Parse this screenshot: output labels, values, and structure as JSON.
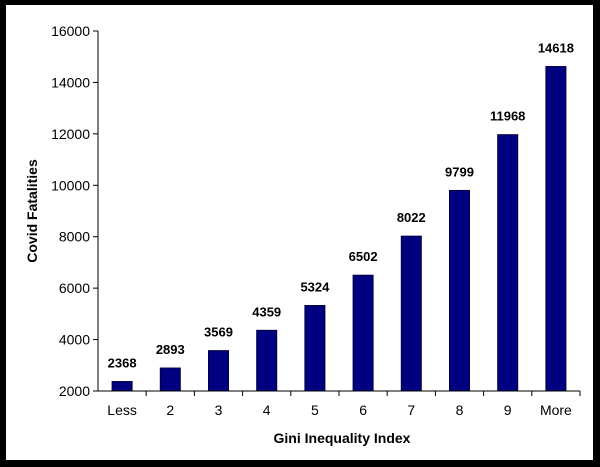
{
  "chart_data": {
    "type": "bar",
    "categories": [
      "Less",
      "2",
      "3",
      "4",
      "5",
      "6",
      "7",
      "8",
      "9",
      "More"
    ],
    "values": [
      2368,
      2893,
      3569,
      4359,
      5324,
      6502,
      8022,
      9799,
      11968,
      14618
    ],
    "xlabel": "Gini Inequality Index",
    "ylabel": "Covid Fatalities",
    "ylim": [
      2000,
      16000
    ],
    "yticks": [
      2000,
      4000,
      6000,
      8000,
      10000,
      12000,
      14000,
      16000
    ],
    "grid": false,
    "legend": "none",
    "colors": {
      "bar": "#000080",
      "bar_outline": "#000040",
      "background": "#ffffff",
      "border": "#000000"
    }
  }
}
